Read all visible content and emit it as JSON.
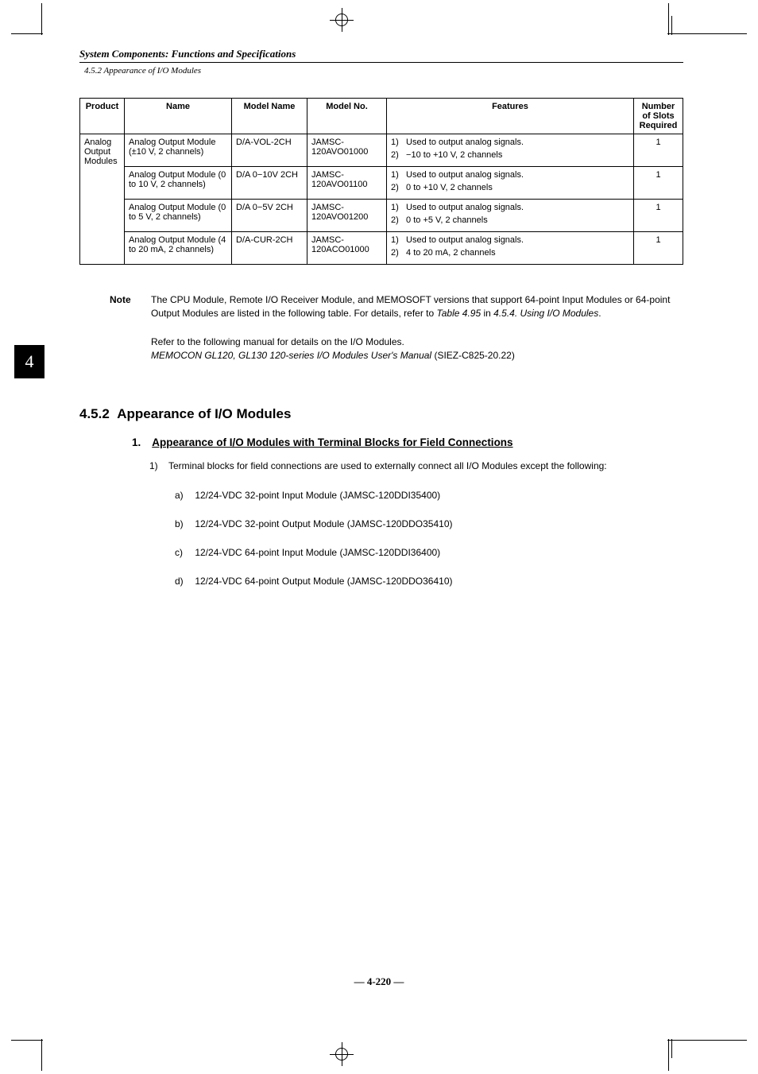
{
  "header": {
    "chapter_title": "System Components: Functions and Specifications",
    "section_ref": "4.5.2 Appearance of I/O Modules"
  },
  "chapter_tab": "4",
  "table": {
    "columns": [
      "Product",
      "Name",
      "Model Name",
      "Model No.",
      "Features",
      "Number of Slots Required"
    ],
    "product_group": "Analog Output Modules",
    "rows": [
      {
        "name": "Analog Output Module (±10 V, 2 channels)",
        "model_name": "D/A-VOL-2CH",
        "model_no": "JAMSC-120AVO01000",
        "features": [
          "Used to output analog signals.",
          "−10 to +10 V, 2 channels"
        ],
        "slots": "1"
      },
      {
        "name": "Analog Output Module (0 to 10 V, 2 channels)",
        "model_name": "D/A 0−10V 2CH",
        "model_no": "JAMSC-120AVO01100",
        "features": [
          "Used to output analog signals.",
          "0 to +10 V, 2 channels"
        ],
        "slots": "1"
      },
      {
        "name": "Analog Output Module (0 to 5 V, 2 channels)",
        "model_name": "D/A 0−5V 2CH",
        "model_no": "JAMSC-120AVO01200",
        "features": [
          "Used to output analog signals.",
          "0 to +5 V, 2 channels"
        ],
        "slots": "1"
      },
      {
        "name": "Analog Output Module (4 to 20 mA, 2 channels)",
        "model_name": "D/A-CUR-2CH",
        "model_no": "JAMSC-120ACO01000",
        "features": [
          "Used to output analog signals.",
          "4 to 20 mA, 2 channels"
        ],
        "slots": "1"
      }
    ]
  },
  "note": {
    "label": "Note",
    "text_1": "The CPU Module, Remote I/O Receiver Module, and MEMOSOFT versions that support 64-point Input Modules or 64-point Output Modules are listed in the following table. For details, refer to ",
    "text_ital_1": "Table 4.95",
    "text_2": " in ",
    "text_ital_2": "4.5.4. Using I/O Modules",
    "text_3": "."
  },
  "reference": {
    "line1": "Refer to the following manual for details on the I/O Modules.",
    "line2_ital": "MEMOCON GL120, GL130 120-series I/O Modules User's Manual",
    "line2_plain": " (SIEZ-C825-20.22)"
  },
  "section": {
    "number": "4.5.2",
    "title": "Appearance of I/O Modules"
  },
  "subsection": {
    "number": "1.",
    "title": "Appearance of I/O Modules with Terminal Blocks for Field Connections",
    "intro_num": "1)",
    "intro": "Terminal blocks for field connections are used to externally connect all I/O Modules except the following:",
    "items": [
      {
        "n": "a)",
        "txt": "12/24-VDC 32-point Input Module (JAMSC-120DDI35400)"
      },
      {
        "n": "b)",
        "txt": "12/24-VDC 32-point Output Module (JAMSC-120DDO35410)"
      },
      {
        "n": "c)",
        "txt": "12/24-VDC 64-point Input Module (JAMSC-120DDI36400)"
      },
      {
        "n": "d)",
        "txt": "12/24-VDC 64-point Output Module (JAMSC-120DDO36410)"
      }
    ]
  },
  "page_number": "— 4-220 —",
  "colors": {
    "text": "#000000",
    "bg": "#ffffff"
  }
}
